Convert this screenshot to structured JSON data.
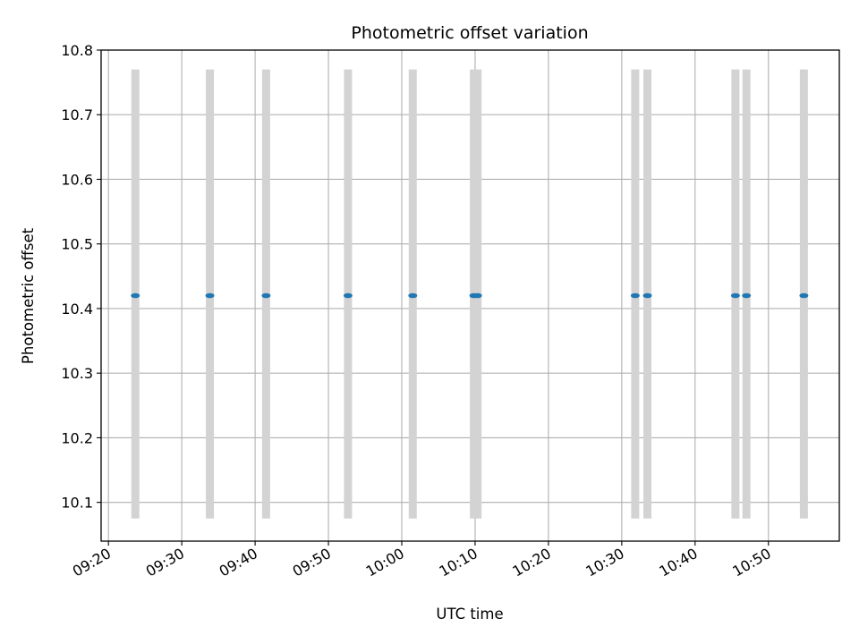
{
  "chart_data": {
    "type": "scatter",
    "title": "Photometric offset variation",
    "xlabel": "UTC time",
    "ylabel": "Photometric offset",
    "x_ticks": [
      "09:20",
      "09:30",
      "09:40",
      "09:50",
      "10:00",
      "10:10",
      "10:20",
      "10:30",
      "10:40",
      "10:50"
    ],
    "y_ticks": [
      "10.1",
      "10.2",
      "10.3",
      "10.4",
      "10.5",
      "10.6",
      "10.7",
      "10.8"
    ],
    "xlim": [
      "09:19",
      "10:59:40"
    ],
    "ylim": [
      10.04,
      10.8
    ],
    "grid": true,
    "errorbar_range": [
      10.075,
      10.77
    ],
    "x": [
      "09:23:40",
      "09:33:50",
      "09:41:30",
      "09:52:40",
      "10:01:30",
      "10:09:50",
      "10:10:20",
      "10:31:50",
      "10:33:30",
      "10:45:30",
      "10:47:00",
      "10:54:50"
    ],
    "y": [
      10.42,
      10.42,
      10.42,
      10.42,
      10.42,
      10.42,
      10.42,
      10.42,
      10.42,
      10.42,
      10.42,
      10.42
    ],
    "colors": {
      "points": "#1f77b4",
      "errorbars": "#d3d3d3",
      "grid": "#b0b0b0"
    }
  }
}
